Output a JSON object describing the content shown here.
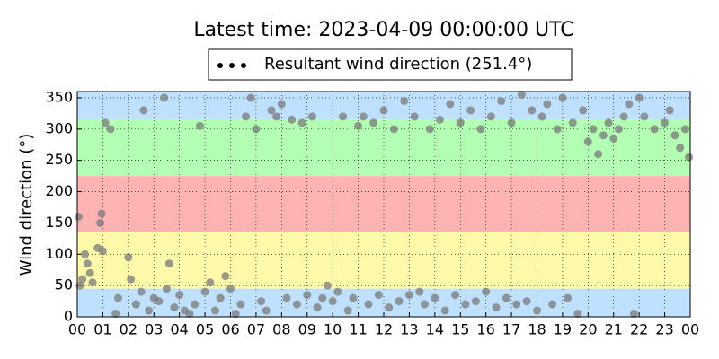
{
  "chart_data": {
    "type": "scatter",
    "title": "Latest time: 2023-04-09 00:00:00 UTC",
    "y_label": "Wind direction (°)",
    "xlim": [
      0,
      24
    ],
    "ylim": [
      0,
      360
    ],
    "grid": true,
    "xticks": [
      {
        "value": 0,
        "label": "00"
      },
      {
        "value": 1,
        "label": "01"
      },
      {
        "value": 2,
        "label": "02"
      },
      {
        "value": 3,
        "label": "03"
      },
      {
        "value": 4,
        "label": "04"
      },
      {
        "value": 5,
        "label": "05"
      },
      {
        "value": 6,
        "label": "06"
      },
      {
        "value": 7,
        "label": "07"
      },
      {
        "value": 8,
        "label": "08"
      },
      {
        "value": 9,
        "label": "09"
      },
      {
        "value": 10,
        "label": "10"
      },
      {
        "value": 11,
        "label": "11"
      },
      {
        "value": 12,
        "label": "12"
      },
      {
        "value": 13,
        "label": "13"
      },
      {
        "value": 14,
        "label": "14"
      },
      {
        "value": 15,
        "label": "15"
      },
      {
        "value": 16,
        "label": "16"
      },
      {
        "value": 17,
        "label": "17"
      },
      {
        "value": 18,
        "label": "18"
      },
      {
        "value": 19,
        "label": "19"
      },
      {
        "value": 20,
        "label": "20"
      },
      {
        "value": 21,
        "label": "21"
      },
      {
        "value": 22,
        "label": "22"
      },
      {
        "value": 23,
        "label": "23"
      },
      {
        "value": 24,
        "label": "00"
      }
    ],
    "yticks": [
      0,
      50,
      100,
      150,
      200,
      250,
      300,
      350
    ],
    "bands": [
      {
        "from": 0,
        "to": 45,
        "color": "#bfe0ff"
      },
      {
        "from": 45,
        "to": 135,
        "color": "#fffaaa"
      },
      {
        "from": 135,
        "to": 225,
        "color": "#ffb3b3"
      },
      {
        "from": 225,
        "to": 315,
        "color": "#b3ffb3"
      },
      {
        "from": 315,
        "to": 360,
        "color": "#bfe0ff"
      }
    ],
    "series": [
      {
        "name": "Resultant wind direction (251.4°)",
        "color": "#7a7a7a",
        "x": [
          0.05,
          0.1,
          0.2,
          0.3,
          0.4,
          0.5,
          0.6,
          0.8,
          0.9,
          0.95,
          1.0,
          1.1,
          1.3,
          1.5,
          1.6,
          2.0,
          2.1,
          2.3,
          2.5,
          2.6,
          2.8,
          3.0,
          3.2,
          3.4,
          3.5,
          3.6,
          3.8,
          4.0,
          4.2,
          4.4,
          4.6,
          4.8,
          5.0,
          5.2,
          5.4,
          5.6,
          5.8,
          6.0,
          6.2,
          6.4,
          6.6,
          6.8,
          7.0,
          7.2,
          7.4,
          7.6,
          7.8,
          8.0,
          8.2,
          8.4,
          8.6,
          8.8,
          9.0,
          9.2,
          9.4,
          9.6,
          9.8,
          10.0,
          10.2,
          10.4,
          10.6,
          10.8,
          11.0,
          11.2,
          11.4,
          11.6,
          11.8,
          12.0,
          12.2,
          12.4,
          12.6,
          12.8,
          13.0,
          13.2,
          13.4,
          13.6,
          13.8,
          14.0,
          14.2,
          14.4,
          14.6,
          14.8,
          15.0,
          15.2,
          15.4,
          15.6,
          15.8,
          16.0,
          16.2,
          16.4,
          16.6,
          16.8,
          17.0,
          17.2,
          17.4,
          17.6,
          17.8,
          18.0,
          18.2,
          18.4,
          18.6,
          18.8,
          19.0,
          19.2,
          19.4,
          19.6,
          19.8,
          20.0,
          20.2,
          20.4,
          20.6,
          20.8,
          21.0,
          21.2,
          21.4,
          21.6,
          21.8,
          22.0,
          22.2,
          22.6,
          23.0,
          23.2,
          23.4,
          23.6,
          23.8,
          23.95
        ],
        "values": [
          160,
          50,
          60,
          100,
          85,
          70,
          55,
          110,
          150,
          165,
          105,
          310,
          300,
          5,
          30,
          95,
          60,
          20,
          40,
          330,
          10,
          30,
          25,
          350,
          45,
          85,
          15,
          35,
          10,
          5,
          20,
          305,
          40,
          55,
          10,
          30,
          65,
          45,
          5,
          20,
          320,
          350,
          300,
          25,
          10,
          330,
          320,
          340,
          30,
          315,
          20,
          310,
          35,
          320,
          15,
          30,
          50,
          25,
          40,
          320,
          10,
          30,
          305,
          320,
          20,
          310,
          35,
          330,
          15,
          300,
          25,
          345,
          35,
          320,
          40,
          20,
          300,
          30,
          315,
          10,
          340,
          35,
          310,
          20,
          330,
          25,
          300,
          40,
          320,
          15,
          345,
          30,
          310,
          20,
          355,
          25,
          330,
          10,
          320,
          340,
          20,
          300,
          350,
          30,
          310,
          5,
          330,
          280,
          300,
          260,
          290,
          310,
          285,
          300,
          320,
          340,
          5,
          350,
          320,
          300,
          310,
          330,
          290,
          270,
          300,
          255
        ]
      }
    ]
  }
}
